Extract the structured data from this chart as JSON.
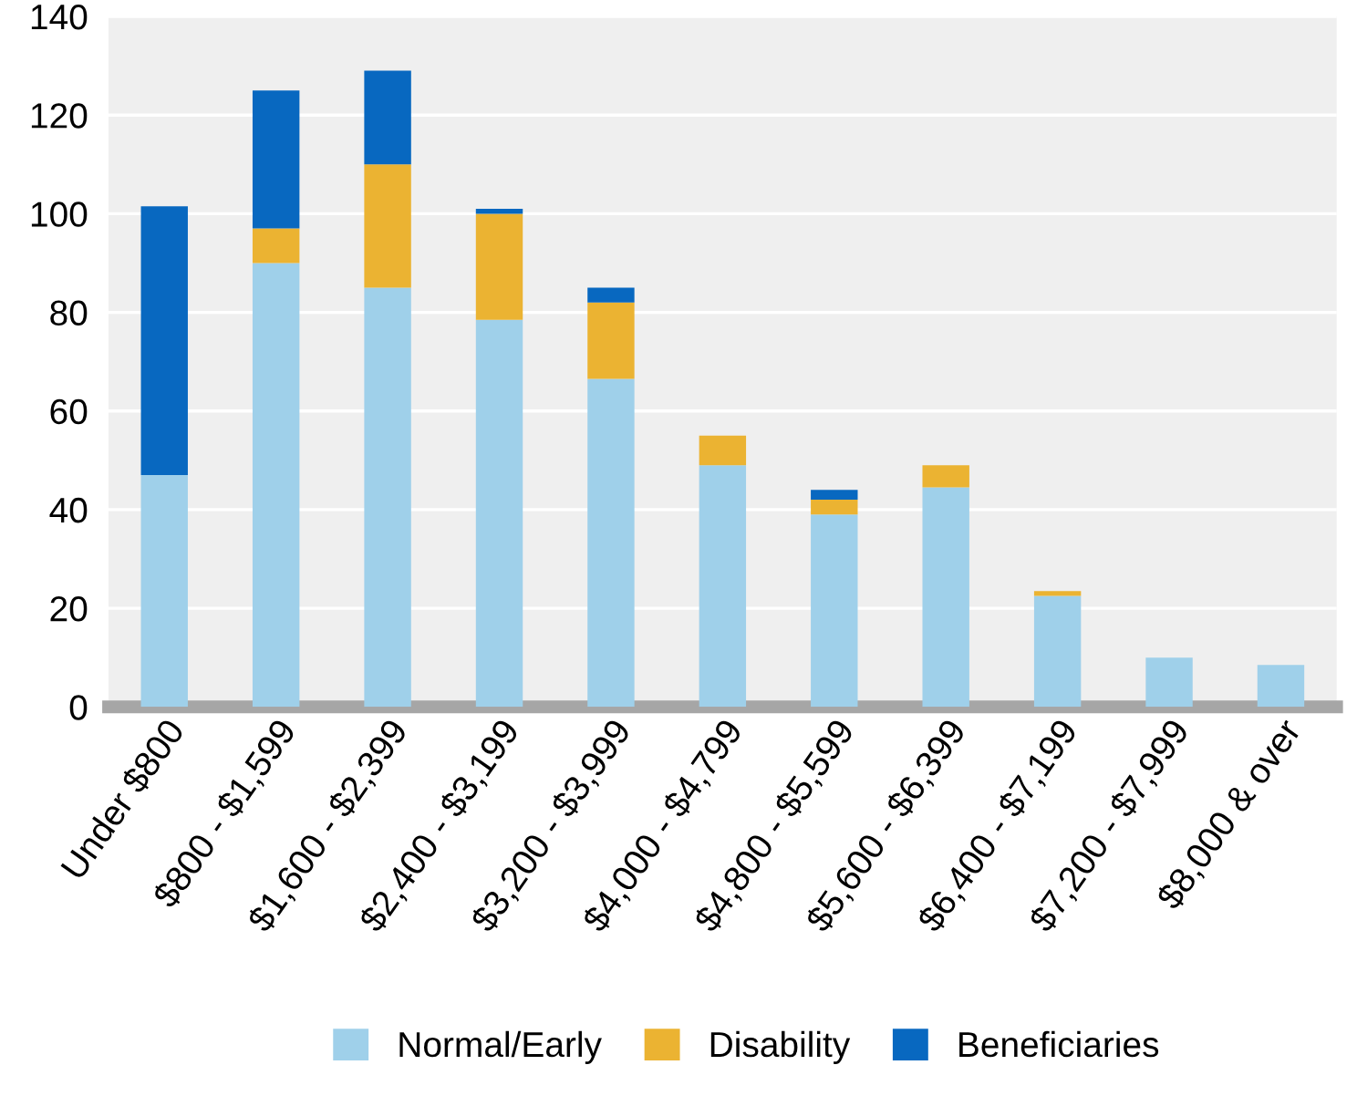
{
  "chart_data": {
    "type": "bar",
    "stacked": true,
    "categories": [
      "Under $800",
      "$800 - $1,599",
      "$1,600 - $2,399",
      "$2,400 - $3,199",
      "$3,200 - $3,999",
      "$4,000 - $4,799",
      "$4,800 - $5,599",
      "$5,600 - $6,399",
      "$6,400 - $7,199",
      "$7,200 - $7,999",
      "$8,000 & over"
    ],
    "series": [
      {
        "name": "Normal/Early",
        "color": "#9fd0ea",
        "values": [
          47,
          90,
          85,
          78.5,
          66.5,
          49,
          39,
          44.5,
          22.5,
          10,
          8.5
        ]
      },
      {
        "name": "Disability",
        "color": "#ebb332",
        "values": [
          0,
          7,
          25,
          21.5,
          15.5,
          6,
          3,
          4.5,
          1,
          0,
          0
        ]
      },
      {
        "name": "Beneficiaries",
        "color": "#0868c0",
        "values": [
          54.5,
          28,
          19,
          1,
          3,
          0,
          2,
          0,
          0,
          0,
          0
        ]
      }
    ],
    "ylim": [
      0,
      140
    ],
    "yticks": [
      0,
      20,
      40,
      60,
      80,
      100,
      120,
      140
    ],
    "grid": "y",
    "legend": "bottom"
  }
}
